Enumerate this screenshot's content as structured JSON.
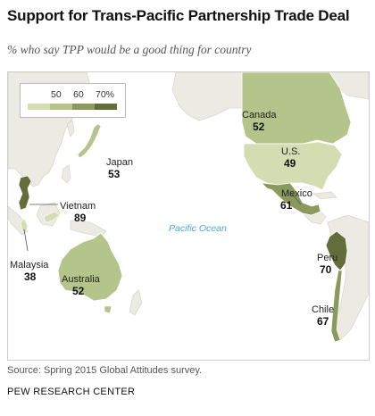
{
  "title": "Support for Trans-Pacific Partnership Trade Deal",
  "subtitle": "% who say TPP would be a good thing for country",
  "legend": {
    "ticks": [
      "50",
      "60",
      "70%"
    ],
    "colors": [
      "#d3ddb1",
      "#b4c48a",
      "#8a9a5c",
      "#626d3a"
    ]
  },
  "ocean_label": "Pacific Ocean",
  "countries": [
    {
      "name": "Canada",
      "value": "52",
      "color": "#b4c48a"
    },
    {
      "name": "U.S.",
      "value": "49",
      "color": "#d3ddb1"
    },
    {
      "name": "Mexico",
      "value": "61",
      "color": "#8a9a5c"
    },
    {
      "name": "Japan",
      "value": "53",
      "color": "#b4c48a"
    },
    {
      "name": "Vietnam",
      "value": "89",
      "color": "#626d3a"
    },
    {
      "name": "Malaysia",
      "value": "38",
      "color": "#d3ddb1"
    },
    {
      "name": "Australia",
      "value": "52",
      "color": "#b4c48a"
    },
    {
      "name": "Peru",
      "value": "70",
      "color": "#626d3a"
    },
    {
      "name": "Chile",
      "value": "67",
      "color": "#8a9a5c"
    }
  ],
  "other_land_color": "#ebebe3",
  "source": "Source: Spring 2015 Global Attitudes survey.",
  "org": "PEW RESEARCH CENTER"
}
